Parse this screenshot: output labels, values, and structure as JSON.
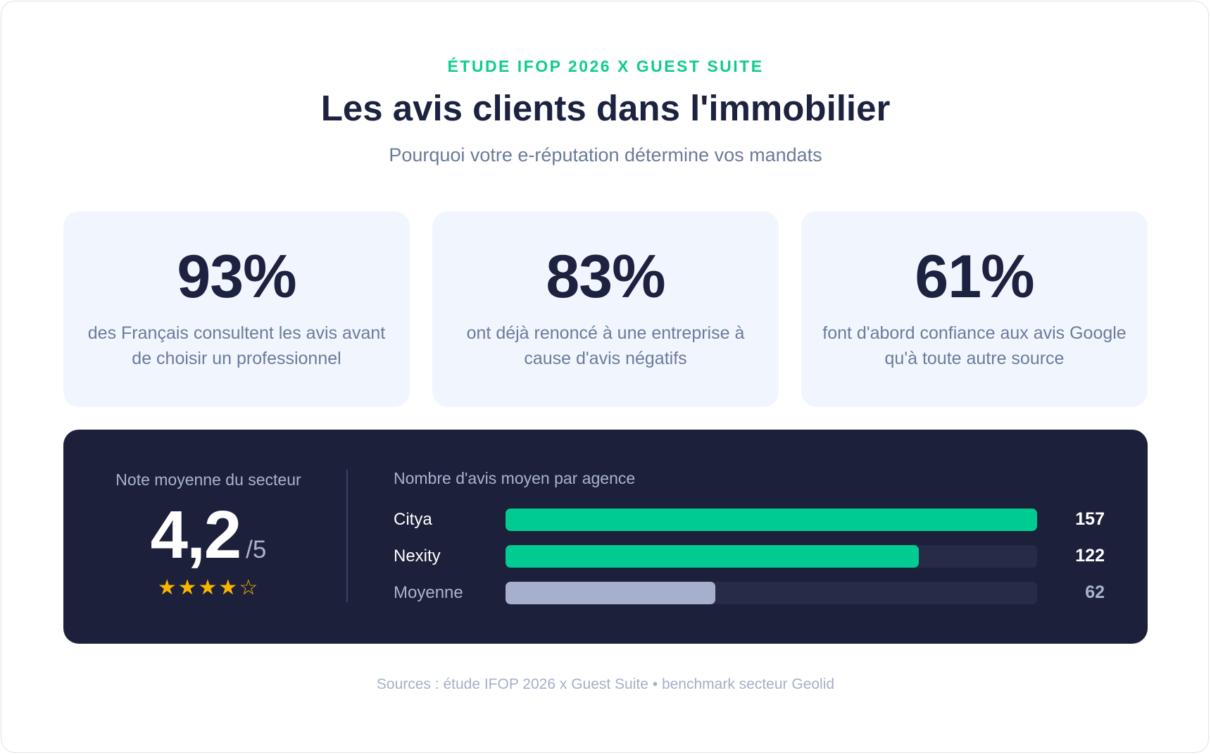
{
  "header": {
    "eyebrow": "ÉTUDE IFOP 2026 X GUEST SUITE",
    "title": "Les avis clients dans l'immobilier",
    "subtitle": "Pourquoi votre e-réputation détermine vos mandats"
  },
  "stats": [
    {
      "value": "93%",
      "description": "des Français consultent les avis avant de choisir un professionnel"
    },
    {
      "value": "83%",
      "description": "ont déjà renoncé à une entreprise à cause d'avis négatifs"
    },
    {
      "value": "61%",
      "description": "font d'abord confiance aux avis Google qu'à toute autre source"
    }
  ],
  "rating": {
    "label": "Note moyenne du secteur",
    "value": "4,2",
    "scale": "/5",
    "stars": "★★★★☆",
    "star_color": "#f7b500"
  },
  "chart_data": {
    "type": "bar",
    "title": "Nombre d'avis moyen par agence",
    "categories": [
      "Citya",
      "Nexity",
      "Moyenne"
    ],
    "values": [
      157,
      122,
      62
    ],
    "xlim": [
      0,
      157
    ],
    "bar_colors": [
      "#00cc92",
      "#00cc92",
      "#a6b0cd"
    ],
    "label_colors": [
      "#ffffff",
      "#ffffff",
      "#a9b3cc"
    ],
    "value_colors": [
      "#ffffff",
      "#ffffff",
      "#a9b3cc"
    ]
  },
  "footer": {
    "sources": "Sources : étude IFOP 2026 x Guest Suite • benchmark secteur Geolid"
  },
  "colors": {
    "accent": "#0fcc8e",
    "navy": "#1c2240",
    "panel": "#1c203b",
    "card": "#f1f6fe"
  }
}
